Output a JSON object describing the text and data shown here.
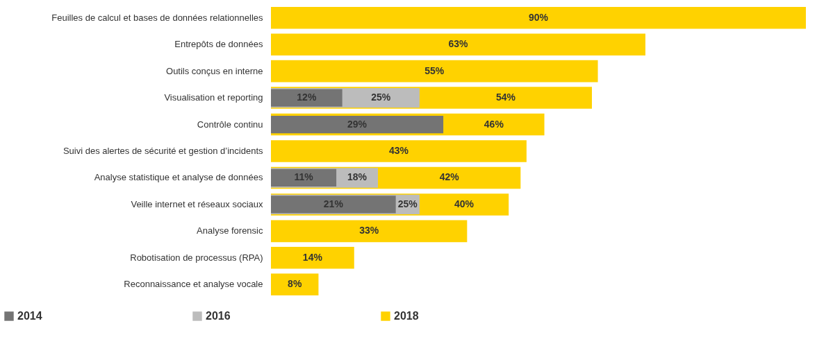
{
  "chart_data": {
    "type": "bar",
    "orientation": "horizontal",
    "legend": "bottom",
    "categories": [
      "Feuilles de calcul et bases de données relationnelles",
      "Entrepôts de données",
      "Outils conçus en interne",
      "Visualisation et reporting",
      "Contrôle continu",
      "Suivi des alertes de sécurité et gestion d’incidents",
      "Analyse statistique et analyse de données",
      "Veille internet et réseaux sociaux",
      "Analyse forensic",
      "Robotisation de processus (RPA)",
      "Reconnaissance et analyse vocale"
    ],
    "series": [
      {
        "name": "2014",
        "color": "#747474",
        "values": [
          null,
          null,
          null,
          12,
          29,
          null,
          11,
          21,
          null,
          null,
          null
        ],
        "value_labels": [
          null,
          null,
          null,
          "12%",
          "29%",
          null,
          "11%",
          "21%",
          null,
          null,
          null
        ]
      },
      {
        "name": "2016",
        "color": "#bcbcbc",
        "values": [
          null,
          null,
          null,
          25,
          null,
          null,
          18,
          25,
          null,
          null,
          null
        ],
        "value_labels": [
          null,
          null,
          null,
          "25%",
          null,
          null,
          "18%",
          "25%",
          null,
          null,
          null
        ]
      },
      {
        "name": "2018",
        "color": "#ffd200",
        "values": [
          90,
          63,
          55,
          54,
          46,
          43,
          42,
          40,
          33,
          14,
          8
        ],
        "value_labels": [
          "90%",
          "63%",
          "55%",
          "54%",
          "46%",
          "43%",
          "42%",
          "40%",
          "33%",
          "14%",
          "8%"
        ]
      }
    ]
  }
}
